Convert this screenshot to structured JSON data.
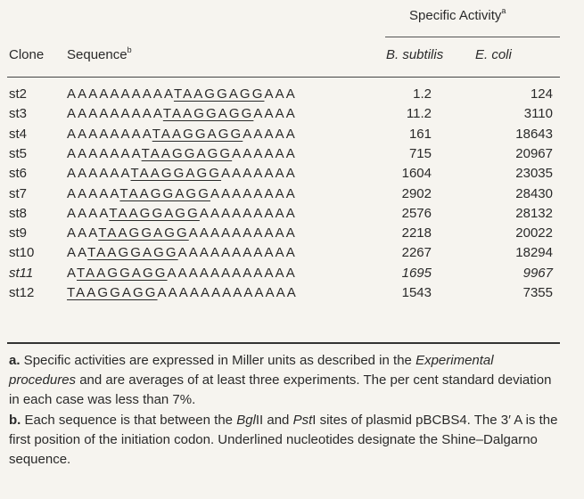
{
  "header": {
    "specific_activity": "Specific Activity",
    "specific_activity_note": "a",
    "clone": "Clone",
    "sequence": "Sequence",
    "sequence_note": "b",
    "b_subtilis": "B. subtilis",
    "e_coli": "E. coli"
  },
  "rows": [
    {
      "clone": "st2",
      "pre": "AAAAAAAAAA",
      "sd": "TAAGGAGG",
      "post": "AAA",
      "bs": "1.2",
      "ec": "124",
      "italic": false
    },
    {
      "clone": "st3",
      "pre": "AAAAAAAAA",
      "sd": "TAAGGAGG",
      "post": "AAAA",
      "bs": "11.2",
      "ec": "3110",
      "italic": false
    },
    {
      "clone": "st4",
      "pre": "AAAAAAAA",
      "sd": "TAAGGAGG",
      "post": "AAAAA",
      "bs": "161",
      "ec": "18643",
      "italic": false
    },
    {
      "clone": "st5",
      "pre": "AAAAAAA",
      "sd": "TAAGGAGG",
      "post": "AAAAAA",
      "bs": "715",
      "ec": "20967",
      "italic": false
    },
    {
      "clone": "st6",
      "pre": "AAAAAA",
      "sd": "TAAGGAGG",
      "post": "AAAAAAA",
      "bs": "1604",
      "ec": "23035",
      "italic": false
    },
    {
      "clone": "st7",
      "pre": "AAAAA",
      "sd": "TAAGGAGG",
      "post": "AAAAAAAA",
      "bs": "2902",
      "ec": "28430",
      "italic": false
    },
    {
      "clone": "st8",
      "pre": "AAAA",
      "sd": "TAAGGAGG",
      "post": "AAAAAAAAA",
      "bs": "2576",
      "ec": "28132",
      "italic": false
    },
    {
      "clone": "st9",
      "pre": "AAA",
      "sd": "TAAGGAGG",
      "post": "AAAAAAAAAA",
      "bs": "2218",
      "ec": "20022",
      "italic": false
    },
    {
      "clone": "st10",
      "pre": "AA",
      "sd": "TAAGGAGG",
      "post": "AAAAAAAAAAA",
      "bs": "2267",
      "ec": "18294",
      "italic": false
    },
    {
      "clone": "st11",
      "pre": "A",
      "sd": "TAAGGAGG",
      "post": "AAAAAAAAAAAA",
      "bs": "1695",
      "ec": "9967",
      "italic": true
    },
    {
      "clone": "st12",
      "pre": "",
      "sd": "TAAGGAGG",
      "post": "AAAAAAAAAAAAA",
      "bs": "1543",
      "ec": "7355",
      "italic": false
    }
  ],
  "footnotes": {
    "a_label": "a.",
    "a_text_1": " Specific activities are expressed in Miller units as described in the ",
    "a_italic": "Experimental procedures",
    "a_text_2": " and are averages of at least three experiments. The per cent standard deviation in each case was less than 7%.",
    "b_label": "b.",
    "b_text_1": " Each sequence is that between the ",
    "b_bgl": "Bgl",
    "b_bgl_roman": "II and ",
    "b_pst": "Pst",
    "b_text_2": "I sites of plasmid pBCBS4. The 3′ A is the first position of the initiation codon. Underlined nucleotides designate the Shine–Dalgarno sequence."
  }
}
